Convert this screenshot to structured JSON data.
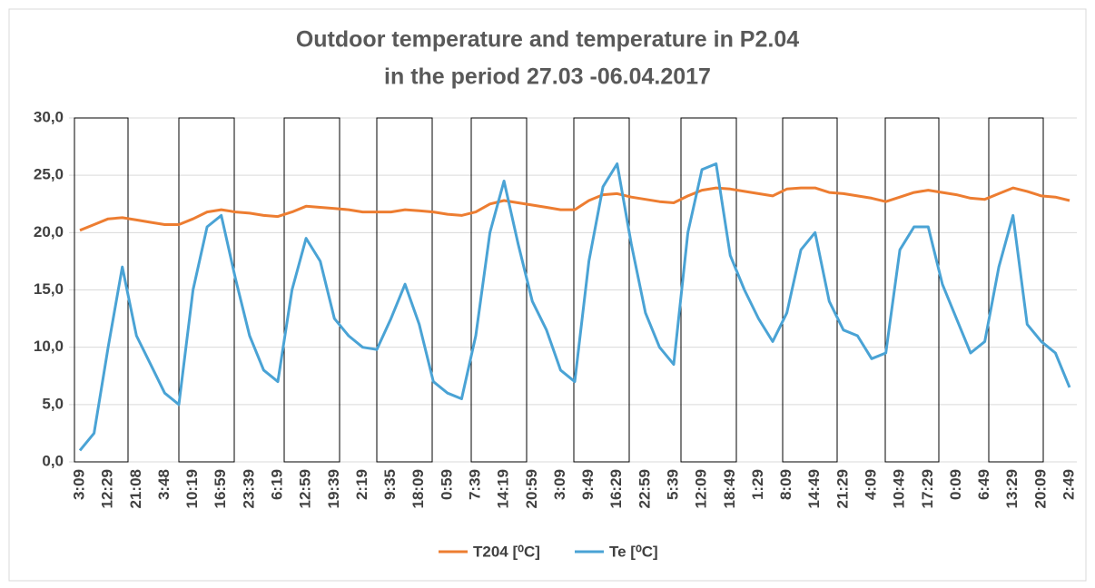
{
  "chart_data": {
    "type": "line",
    "title": "Outdoor temperature and temperature in P2.04",
    "subtitle": "in the period 27.03 -06.04.2017",
    "categories": [
      "3:09",
      null,
      "12:29",
      null,
      "21:08",
      null,
      "3:48",
      null,
      "10:19",
      null,
      "16:59",
      null,
      "23:39",
      null,
      "6:19",
      null,
      "12:59",
      null,
      "19:39",
      null,
      "2:19",
      null,
      "9:35",
      null,
      "18:09",
      null,
      "0:59",
      null,
      "7:39",
      null,
      "14:19",
      null,
      "20:59",
      null,
      "3:09",
      null,
      "9:49",
      null,
      "16:29",
      null,
      "22:59",
      null,
      "5:39",
      null,
      "12:09",
      null,
      "18:49",
      null,
      "1:29",
      null,
      "8:09",
      null,
      "14:49",
      null,
      "21:29",
      null,
      "4:09",
      null,
      "10:49",
      null,
      "17:29",
      null,
      "0:09",
      null,
      "6:49",
      null,
      "13:29",
      null,
      "20:09",
      null,
      "2:49"
    ],
    "series": [
      {
        "name": "T204 [⁰C]",
        "color": "#ed7d31",
        "values": [
          20.2,
          20.7,
          21.2,
          21.3,
          21.1,
          20.9,
          20.7,
          20.7,
          21.2,
          21.8,
          22.0,
          21.8,
          21.7,
          21.5,
          21.4,
          21.8,
          22.3,
          22.2,
          22.1,
          22.0,
          21.8,
          21.8,
          21.8,
          22.0,
          21.9,
          21.8,
          21.6,
          21.5,
          21.8,
          22.5,
          22.8,
          22.6,
          22.4,
          22.2,
          22.0,
          22.0,
          22.8,
          23.3,
          23.4,
          23.1,
          22.9,
          22.7,
          22.6,
          23.2,
          23.7,
          23.9,
          23.8,
          23.6,
          23.4,
          23.2,
          23.8,
          23.9,
          23.9,
          23.5,
          23.4,
          23.2,
          23.0,
          22.7,
          23.1,
          23.5,
          23.7,
          23.5,
          23.3,
          23.0,
          22.9,
          23.4,
          23.9,
          23.6,
          23.2,
          23.1,
          22.8
        ]
      },
      {
        "name": "Te [⁰C]",
        "color": "#4aa3d5",
        "values": [
          1.0,
          2.5,
          10,
          17,
          11,
          8.5,
          6,
          5,
          15,
          20.5,
          21.5,
          16,
          11,
          8,
          7,
          15,
          19.5,
          17.5,
          12.5,
          11,
          10,
          9.8,
          12.5,
          15.5,
          12,
          7,
          6,
          5.5,
          11,
          20,
          24.5,
          19,
          14,
          11.5,
          8,
          7,
          17.5,
          24,
          26,
          19,
          13,
          10,
          8.5,
          20,
          25.5,
          26,
          18,
          15,
          12.5,
          10.5,
          13,
          18.5,
          20,
          14,
          11.5,
          11,
          9,
          9.5,
          18.5,
          20.5,
          20.5,
          15.5,
          12.5,
          9.5,
          10.5,
          17,
          21.5,
          12,
          10.5,
          9.5,
          6.5
        ]
      }
    ],
    "ylim": [
      0,
      30
    ],
    "yticks": [
      {
        "value": 0,
        "label": "0,0"
      },
      {
        "value": 5,
        "label": "5,0"
      },
      {
        "value": 10,
        "label": "10,0"
      },
      {
        "value": 15,
        "label": "15,0"
      },
      {
        "value": 20,
        "label": "20,0"
      },
      {
        "value": 25,
        "label": "25,0"
      },
      {
        "value": 30,
        "label": "30,0"
      }
    ],
    "grid": true,
    "legend": "bottom"
  }
}
